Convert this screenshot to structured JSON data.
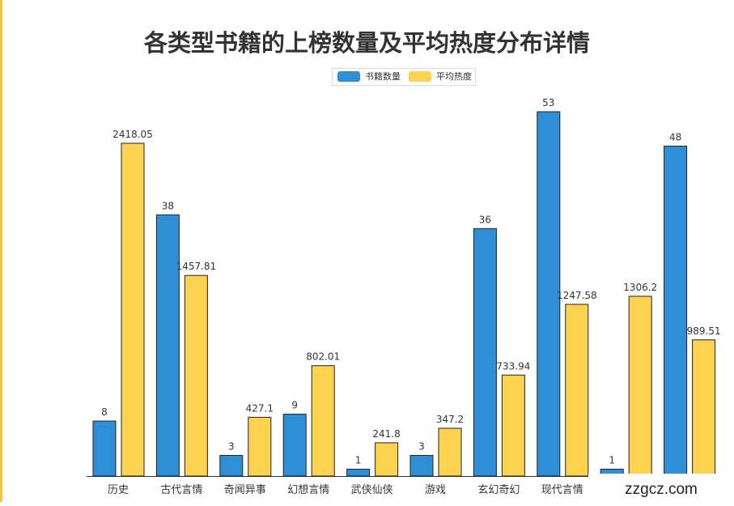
{
  "title": "各类型书籍的上榜数量及平均热度分布详情",
  "watermark": "zzgcz.com",
  "chart_data": {
    "type": "bar",
    "title": "各类型书籍的上榜数量及平均热度分布详情",
    "categories": [
      "历史",
      "古代言情",
      "奇闻异事",
      "幻想言情",
      "武侠仙侠",
      "游戏",
      "玄幻奇幻",
      "现代言情",
      "",
      ""
    ],
    "series": [
      {
        "name": "书籍数量",
        "color": "#2e8fd6",
        "values": [
          8,
          38,
          3,
          9,
          1,
          3,
          36,
          53,
          1,
          48
        ],
        "labels": [
          "8",
          "38",
          "3",
          "9",
          "1",
          "3",
          "36",
          "53",
          "1",
          "48"
        ]
      },
      {
        "name": "平均热度",
        "color": "#fdd24e",
        "values": [
          2418.05,
          1457.81,
          427.1,
          802.01,
          241.8,
          347.2,
          733.94,
          1247.58,
          1306.2,
          989.51
        ],
        "labels": [
          "2418.05",
          "1457.81",
          "427.1",
          "802.01",
          "241.8",
          "347.2",
          "733.94",
          "1247.58",
          "1306.2",
          "989.51"
        ]
      }
    ],
    "xlabel": "",
    "ylabel": "",
    "legend_position": "top-center",
    "grid": false
  }
}
